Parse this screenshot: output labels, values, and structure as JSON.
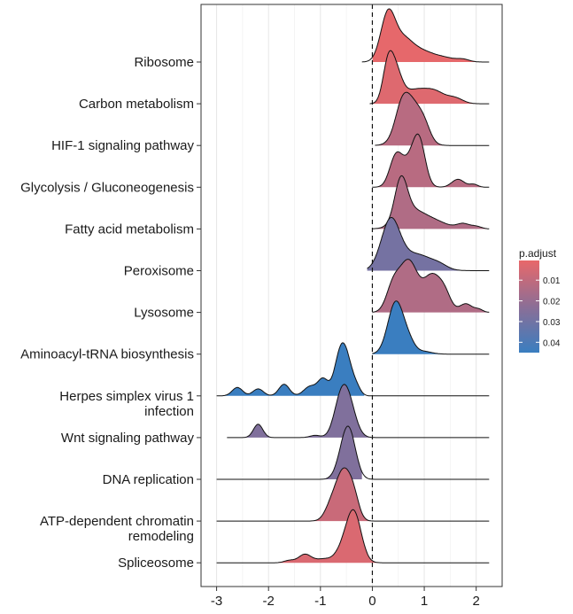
{
  "chart_data": {
    "type": "ridgeline",
    "xlim": [
      -3.3,
      2.5
    ],
    "x_ticks": [
      -3,
      -2,
      -1,
      0,
      1,
      2
    ],
    "x_tick_labels": [
      "-3",
      "-2",
      "-1",
      "0",
      "1",
      "2"
    ],
    "reference_line_x": 0,
    "grid": true,
    "legend": {
      "title": "p.adjust",
      "position": "right",
      "range": [
        0.0005,
        0.045
      ],
      "ticks": [
        0.01,
        0.02,
        0.03,
        0.04
      ],
      "tick_labels": [
        "0.01",
        "0.02",
        "0.03",
        "0.04"
      ],
      "color_low": "#E8686A",
      "color_high": "#3A7EC0"
    },
    "series": [
      {
        "name": "Ribosome",
        "p_adjust": 0.001,
        "x_min": -0.2,
        "x_max": 2.25,
        "x_fill_min": 0.0,
        "peaks": [
          [
            0.3,
            0.14,
            1.0
          ],
          [
            0.6,
            0.18,
            0.45
          ],
          [
            0.95,
            0.2,
            0.2
          ],
          [
            1.35,
            0.22,
            0.1
          ],
          [
            1.75,
            0.12,
            0.05
          ]
        ]
      },
      {
        "name": "Carbon metabolism",
        "p_adjust": 0.003,
        "x_min": -0.05,
        "x_max": 2.25,
        "peaks": [
          [
            0.3,
            0.1,
            0.55
          ],
          [
            0.45,
            0.12,
            0.45
          ],
          [
            0.8,
            0.22,
            0.2
          ],
          [
            1.2,
            0.2,
            0.18
          ],
          [
            1.6,
            0.15,
            0.08
          ]
        ]
      },
      {
        "name": "HIF-1 signaling pathway",
        "p_adjust": 0.012,
        "x_min": 0.05,
        "x_max": 2.25,
        "peaks": [
          [
            0.72,
            0.2,
            0.9
          ],
          [
            0.55,
            0.12,
            0.3
          ],
          [
            1.0,
            0.12,
            0.25
          ]
        ]
      },
      {
        "name": "Glycolysis / Gluconeogenesis",
        "p_adjust": 0.012,
        "x_min": 0.0,
        "x_max": 2.25,
        "peaks": [
          [
            0.45,
            0.12,
            0.4
          ],
          [
            0.9,
            0.12,
            0.6
          ],
          [
            0.7,
            0.15,
            0.3
          ],
          [
            1.65,
            0.12,
            0.11
          ],
          [
            1.95,
            0.08,
            0.04
          ]
        ]
      },
      {
        "name": "Fatty acid metabolism",
        "p_adjust": 0.014,
        "x_min": 0.0,
        "x_max": 2.25,
        "peaks": [
          [
            0.55,
            0.12,
            0.8
          ],
          [
            0.75,
            0.25,
            0.35
          ],
          [
            1.2,
            0.25,
            0.14
          ],
          [
            1.75,
            0.12,
            0.1
          ],
          [
            2.0,
            0.1,
            0.05
          ]
        ]
      },
      {
        "name": "Peroxisome",
        "p_adjust": 0.029,
        "x_min": -0.1,
        "x_max": 2.25,
        "peaks": [
          [
            0.35,
            0.18,
            0.75
          ],
          [
            0.85,
            0.3,
            0.25
          ],
          [
            1.3,
            0.15,
            0.05
          ]
        ]
      },
      {
        "name": "Lysosome",
        "p_adjust": 0.014,
        "x_min": 0.0,
        "x_max": 2.25,
        "peaks": [
          [
            0.4,
            0.13,
            0.35
          ],
          [
            0.7,
            0.17,
            0.7
          ],
          [
            1.15,
            0.17,
            0.5
          ],
          [
            1.4,
            0.12,
            0.2
          ],
          [
            1.8,
            0.12,
            0.12
          ],
          [
            2.05,
            0.08,
            0.04
          ]
        ]
      },
      {
        "name": "Aminoacyl-tRNA biosynthesis",
        "p_adjust": 0.045,
        "x_min": 0.0,
        "x_max": 2.25,
        "peaks": [
          [
            0.45,
            0.15,
            1.0
          ],
          [
            0.7,
            0.12,
            0.2
          ],
          [
            1.0,
            0.15,
            0.05
          ]
        ]
      },
      {
        "name": "Herpes simplex virus 1 infection",
        "p_adjust": 0.045,
        "x_min": -3.0,
        "x_max": 2.25,
        "x_fill_max": -0.15,
        "peaks": [
          [
            -0.6,
            0.12,
            1.0
          ],
          [
            -0.45,
            0.1,
            0.35
          ],
          [
            -0.95,
            0.1,
            0.35
          ],
          [
            -1.2,
            0.12,
            0.2
          ],
          [
            -1.7,
            0.1,
            0.25
          ],
          [
            -2.2,
            0.1,
            0.15
          ],
          [
            -2.6,
            0.1,
            0.18
          ],
          [
            -0.3,
            0.08,
            0.15
          ]
        ]
      },
      {
        "name": "Wnt signaling pathway",
        "p_adjust": 0.026,
        "x_min": -2.8,
        "x_max": 2.25,
        "x_fill_max": -0.05,
        "peaks": [
          [
            -0.5,
            0.15,
            1.0
          ],
          [
            -0.65,
            0.12,
            0.35
          ],
          [
            -2.2,
            0.09,
            0.3
          ],
          [
            -1.1,
            0.1,
            0.05
          ]
        ]
      },
      {
        "name": "DNA replication",
        "p_adjust": 0.026,
        "x_min": -3.0,
        "x_max": 2.25,
        "x_fill_max": -0.2,
        "peaks": [
          [
            -0.45,
            0.13,
            1.0
          ],
          [
            -0.6,
            0.12,
            0.25
          ]
        ]
      },
      {
        "name": "ATP-dependent chromatin remodeling",
        "p_adjust": 0.008,
        "x_min": -3.0,
        "x_max": 2.25,
        "x_fill_max": 0.0,
        "peaks": [
          [
            -0.55,
            0.15,
            1.0
          ],
          [
            -0.35,
            0.1,
            0.3
          ],
          [
            -0.8,
            0.12,
            0.25
          ]
        ]
      },
      {
        "name": "Spliceosome",
        "p_adjust": 0.004,
        "x_min": -3.0,
        "x_max": 2.25,
        "peaks": [
          [
            -0.35,
            0.14,
            1.0
          ],
          [
            -0.55,
            0.15,
            0.3
          ],
          [
            -1.3,
            0.12,
            0.18
          ],
          [
            -0.95,
            0.15,
            0.08
          ],
          [
            -1.6,
            0.1,
            0.05
          ]
        ]
      }
    ]
  }
}
